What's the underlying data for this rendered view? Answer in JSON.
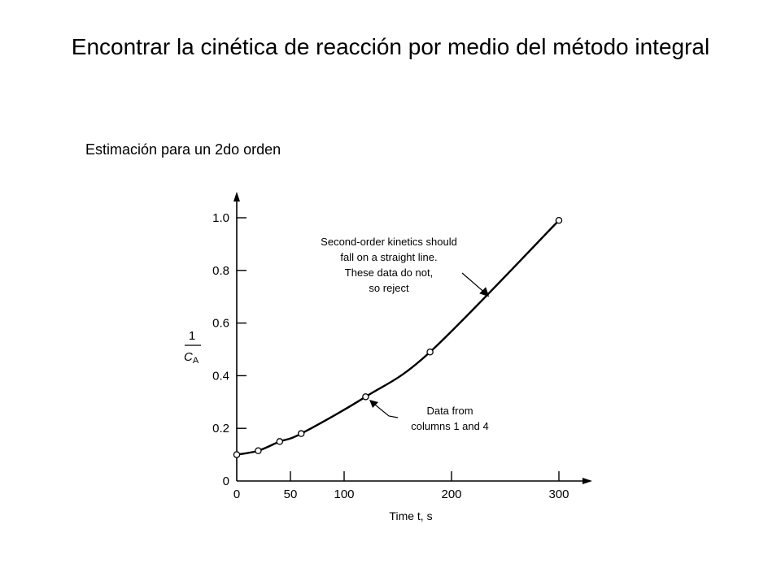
{
  "page": {
    "title": "Encontrar la cinética de reacción por medio del método integral",
    "subtitle": "Estimación para un 2do orden"
  },
  "chart_data": {
    "type": "scatter",
    "x": [
      0,
      20,
      40,
      60,
      120,
      180,
      300
    ],
    "series": [
      {
        "values": [
          0.1,
          0.115,
          0.15,
          0.18,
          0.32,
          0.49,
          0.99
        ]
      }
    ],
    "fit_curve": true,
    "xlabel": "Time t, s",
    "ylabel_num": "1",
    "ylabel_den": "C",
    "ylabel_den_sub": "A",
    "xticks": [
      0,
      50,
      100,
      200,
      300
    ],
    "yticks": [
      0,
      0.2,
      0.4,
      0.6,
      0.8,
      1.0
    ],
    "xtick_labels": [
      "0",
      "50",
      "100",
      "200",
      "300"
    ],
    "ytick_labels": [
      "0",
      "0.2",
      "0.4",
      "0.6",
      "0.8",
      "1.0"
    ],
    "xlim": [
      0,
      330
    ],
    "ylim": [
      0,
      1.08
    ],
    "grid": false,
    "annotations": [
      {
        "lines": [
          "Second-order kinetics should",
          "fall on a straight line.",
          "These data do not,",
          "so reject"
        ],
        "points_to": {
          "x": 235,
          "y": 0.7
        }
      },
      {
        "lines": [
          "Data from",
          "columns 1 and 4"
        ],
        "points_to": {
          "x": 122,
          "y": 0.315
        }
      }
    ]
  }
}
